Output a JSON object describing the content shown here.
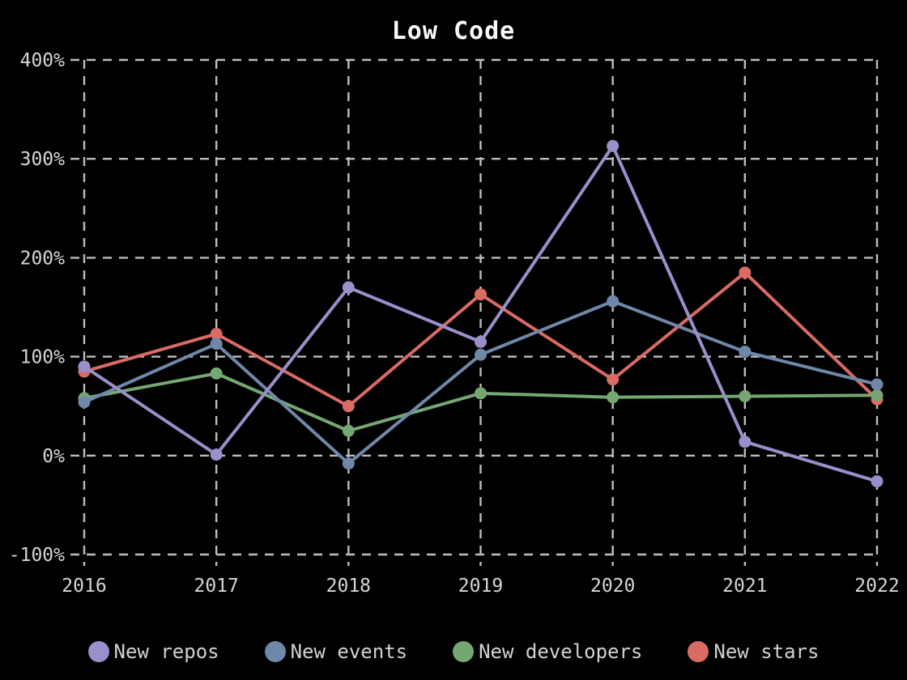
{
  "chart_data": {
    "type": "line",
    "title": "Low Code",
    "x_categories": [
      "2016",
      "2017",
      "2018",
      "2019",
      "2020",
      "2021",
      "2022"
    ],
    "y_ticks": [
      "400%",
      "300%",
      "200%",
      "100%",
      "0%",
      "-100%"
    ],
    "ylim": [
      -100,
      400
    ],
    "y_unit": "%",
    "grid": "dashed",
    "legend_position": "bottom",
    "background_color": "#000000",
    "gridline_color": "#bdbdbd",
    "text_color": "#d6d6d6",
    "series": [
      {
        "name": "New repos",
        "color": "#9a8fcb",
        "values": [
          90,
          1,
          170,
          115,
          313,
          14,
          -26
        ]
      },
      {
        "name": "New events",
        "color": "#6f87a8",
        "values": [
          54,
          113,
          -8,
          102,
          156,
          105,
          72
        ]
      },
      {
        "name": "New developers",
        "color": "#76a773",
        "values": [
          58,
          83,
          25,
          63,
          59,
          60,
          61
        ]
      },
      {
        "name": "New stars",
        "color": "#d96b64",
        "values": [
          85,
          123,
          50,
          163,
          77,
          185,
          57
        ]
      }
    ]
  }
}
